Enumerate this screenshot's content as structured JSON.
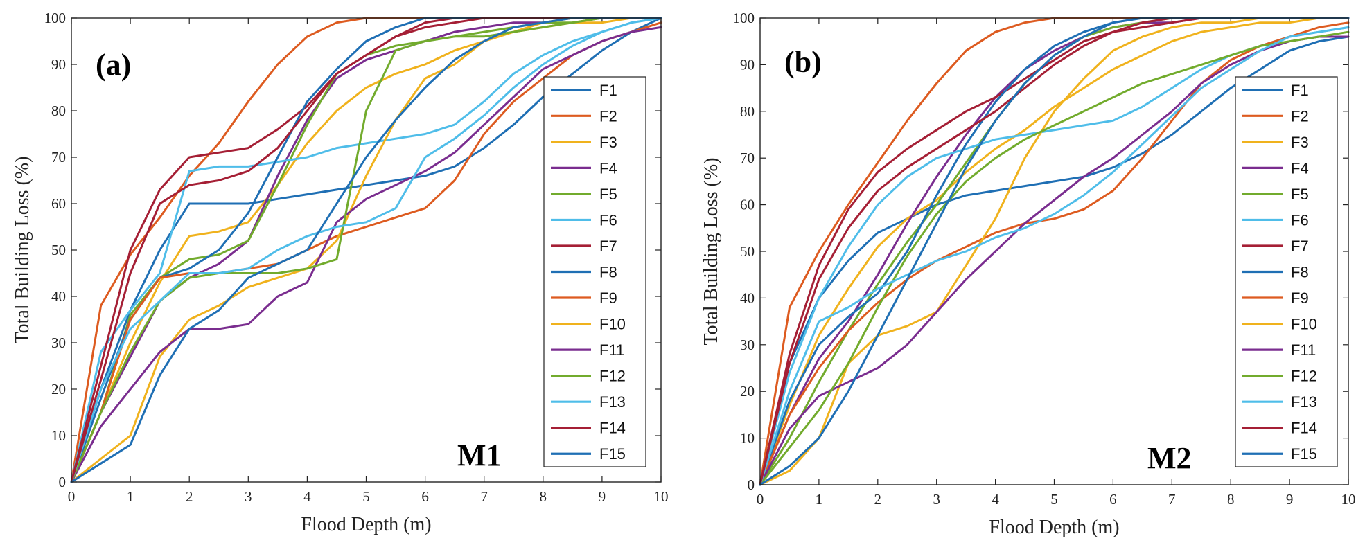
{
  "colors": [
    "#1f6fb4",
    "#dd5b20",
    "#f0b21d",
    "#7a2d8f",
    "#72ab2d",
    "#4fbde9",
    "#a51f35",
    "#1f6fb4",
    "#dd5b20",
    "#f0b21d",
    "#7a2d8f",
    "#72ab2d",
    "#4fbde9",
    "#a51f35",
    "#1f6fb4"
  ],
  "chart_data": [
    {
      "type": "line",
      "panel_label": "(a)",
      "model_label": "M1",
      "xlabel": "Flood Depth (m)",
      "ylabel": "Total Building Loss (%)",
      "xlim": [
        0,
        10
      ],
      "ylim": [
        0,
        100
      ],
      "xticks": [
        "0",
        "1",
        "2",
        "3",
        "4",
        "5",
        "6",
        "7",
        "8",
        "9",
        "10"
      ],
      "yticks": [
        "0",
        "10",
        "20",
        "30",
        "40",
        "50",
        "60",
        "70",
        "80",
        "90",
        "100"
      ],
      "legend": [
        "F1",
        "F2",
        "F3",
        "F4",
        "F5",
        "F6",
        "F7",
        "F8",
        "F9",
        "F10",
        "F11",
        "F12",
        "F13",
        "F14",
        "F15"
      ],
      "legend_position": "right",
      "x": [
        0,
        0.5,
        1,
        1.5,
        2,
        2.5,
        3,
        3.5,
        4,
        4.5,
        5,
        5.5,
        6,
        6.5,
        7,
        7.5,
        8,
        8.5,
        9,
        9.5,
        10
      ],
      "series": [
        {
          "name": "F1",
          "values": [
            0,
            20,
            37,
            50,
            60,
            60,
            60,
            61,
            62,
            63,
            64,
            65,
            66,
            68,
            72,
            77,
            83,
            88,
            93,
            97,
            100
          ]
        },
        {
          "name": "F2",
          "values": [
            0,
            38,
            49,
            57,
            66,
            73,
            82,
            90,
            96,
            99,
            100,
            100,
            100,
            100,
            100,
            100,
            100,
            100,
            100,
            100,
            100
          ]
        },
        {
          "name": "F3",
          "values": [
            0,
            15,
            30,
            43,
            53,
            54,
            56,
            64,
            73,
            80,
            85,
            88,
            90,
            93,
            95,
            97,
            98,
            99,
            99,
            100,
            100
          ]
        },
        {
          "name": "F4",
          "values": [
            0,
            15,
            27,
            39,
            44,
            47,
            52,
            66,
            78,
            87,
            91,
            93,
            95,
            97,
            98,
            99,
            99,
            100,
            100,
            100,
            100
          ]
        },
        {
          "name": "F5",
          "values": [
            0,
            15,
            36,
            44,
            48,
            49,
            52,
            64,
            77,
            88,
            92,
            94,
            95,
            96,
            97,
            98,
            99,
            99,
            100,
            100,
            100
          ]
        },
        {
          "name": "F6",
          "values": [
            0,
            28,
            37,
            45,
            67,
            68,
            68,
            69,
            70,
            72,
            73,
            74,
            75,
            77,
            82,
            88,
            92,
            95,
            97,
            99,
            100
          ]
        },
        {
          "name": "F7",
          "values": [
            0,
            25,
            50,
            63,
            70,
            71,
            72,
            76,
            81,
            88,
            92,
            96,
            99,
            100,
            100,
            100,
            100,
            100,
            100,
            100,
            100
          ]
        },
        {
          "name": "F8",
          "values": [
            0,
            18,
            35,
            44,
            46,
            50,
            58,
            70,
            82,
            89,
            95,
            98,
            100,
            100,
            100,
            100,
            100,
            100,
            100,
            100,
            100
          ]
        },
        {
          "name": "F9",
          "values": [
            0,
            15,
            35,
            44,
            45,
            45,
            46,
            47,
            50,
            53,
            55,
            57,
            59,
            65,
            75,
            82,
            87,
            92,
            95,
            97,
            99
          ]
        },
        {
          "name": "F10",
          "values": [
            0,
            5,
            10,
            27,
            35,
            38,
            42,
            44,
            46,
            52,
            66,
            78,
            87,
            90,
            95,
            97,
            99,
            100,
            100,
            100,
            100
          ]
        },
        {
          "name": "F11",
          "values": [
            0,
            12,
            20,
            28,
            33,
            33,
            34,
            40,
            43,
            56,
            61,
            64,
            67,
            71,
            77,
            83,
            89,
            92,
            95,
            97,
            98
          ]
        },
        {
          "name": "F12",
          "values": [
            0,
            15,
            28,
            39,
            44,
            45,
            45,
            45,
            46,
            48,
            80,
            93,
            95,
            96,
            96,
            97,
            98,
            99,
            100,
            100,
            100
          ]
        },
        {
          "name": "F13",
          "values": [
            0,
            20,
            33,
            39,
            45,
            45,
            46,
            50,
            53,
            55,
            56,
            59,
            70,
            74,
            79,
            85,
            90,
            94,
            97,
            99,
            100
          ]
        },
        {
          "name": "F14",
          "values": [
            0,
            22,
            45,
            60,
            64,
            65,
            67,
            72,
            80,
            88,
            92,
            96,
            98,
            99,
            100,
            100,
            100,
            100,
            100,
            100,
            100
          ]
        },
        {
          "name": "F15",
          "values": [
            0,
            4,
            8,
            23,
            33,
            37,
            44,
            47,
            50,
            60,
            70,
            78,
            85,
            91,
            95,
            98,
            99,
            100,
            100,
            100,
            100
          ]
        }
      ]
    },
    {
      "type": "line",
      "panel_label": "(b)",
      "model_label": "M2",
      "xlabel": "Flood Depth (m)",
      "ylabel": "Total Building Loss (%)",
      "xlim": [
        0,
        10
      ],
      "ylim": [
        0,
        100
      ],
      "xticks": [
        "0",
        "1",
        "2",
        "3",
        "4",
        "5",
        "6",
        "7",
        "8",
        "9",
        "10"
      ],
      "yticks": [
        "0",
        "10",
        "20",
        "30",
        "40",
        "50",
        "60",
        "70",
        "80",
        "90",
        "100"
      ],
      "legend": [
        "F1",
        "F2",
        "F3",
        "F4",
        "F5",
        "F6",
        "F7",
        "F8",
        "F9",
        "F10",
        "F11",
        "F12",
        "F13",
        "F14",
        "F15"
      ],
      "legend_position": "right",
      "x": [
        0,
        0.5,
        1,
        1.5,
        2,
        2.5,
        3,
        3.5,
        4,
        4.5,
        5,
        5.5,
        6,
        6.5,
        7,
        7.5,
        8,
        8.5,
        9,
        9.5,
        10
      ],
      "series": [
        {
          "name": "F1",
          "values": [
            0,
            26,
            40,
            48,
            54,
            57,
            60,
            62,
            63,
            64,
            65,
            66,
            68,
            71,
            75,
            80,
            85,
            89,
            93,
            95,
            96
          ]
        },
        {
          "name": "F2",
          "values": [
            0,
            38,
            50,
            60,
            69,
            78,
            86,
            93,
            97,
            99,
            100,
            100,
            100,
            100,
            100,
            100,
            100,
            100,
            100,
            100,
            100
          ]
        },
        {
          "name": "F3",
          "values": [
            0,
            17,
            32,
            42,
            51,
            57,
            61,
            67,
            72,
            76,
            81,
            85,
            89,
            92,
            95,
            97,
            98,
            99,
            99,
            100,
            100
          ]
        },
        {
          "name": "F4",
          "values": [
            0,
            15,
            27,
            35,
            45,
            56,
            66,
            75,
            83,
            89,
            93,
            96,
            98,
            99,
            99,
            100,
            100,
            100,
            100,
            100,
            100
          ]
        },
        {
          "name": "F5",
          "values": [
            0,
            10,
            22,
            33,
            43,
            52,
            60,
            69,
            78,
            86,
            92,
            96,
            98,
            99,
            100,
            100,
            100,
            100,
            100,
            100,
            100
          ]
        },
        {
          "name": "F6",
          "values": [
            0,
            24,
            40,
            51,
            60,
            66,
            70,
            72,
            74,
            75,
            76,
            77,
            78,
            81,
            85,
            89,
            92,
            94,
            96,
            97,
            98
          ]
        },
        {
          "name": "F7",
          "values": [
            0,
            28,
            47,
            59,
            67,
            72,
            76,
            80,
            83,
            87,
            91,
            95,
            97,
            98,
            99,
            100,
            100,
            100,
            100,
            100,
            100
          ]
        },
        {
          "name": "F8",
          "values": [
            0,
            18,
            30,
            36,
            41,
            50,
            62,
            73,
            82,
            89,
            94,
            97,
            99,
            100,
            100,
            100,
            100,
            100,
            100,
            100,
            100
          ]
        },
        {
          "name": "F9",
          "values": [
            0,
            15,
            25,
            33,
            39,
            44,
            48,
            51,
            54,
            56,
            57,
            59,
            63,
            70,
            78,
            86,
            91,
            94,
            96,
            98,
            99
          ]
        },
        {
          "name": "F10",
          "values": [
            0,
            3,
            10,
            26,
            32,
            34,
            37,
            47,
            57,
            70,
            80,
            87,
            93,
            96,
            98,
            99,
            99,
            100,
            100,
            100,
            100
          ]
        },
        {
          "name": "F11",
          "values": [
            0,
            12,
            19,
            22,
            25,
            30,
            37,
            44,
            50,
            56,
            61,
            66,
            70,
            75,
            80,
            86,
            90,
            93,
            95,
            96,
            96
          ]
        },
        {
          "name": "F12",
          "values": [
            0,
            8,
            16,
            26,
            38,
            49,
            58,
            65,
            70,
            74,
            77,
            80,
            83,
            86,
            88,
            90,
            92,
            94,
            95,
            96,
            97
          ]
        },
        {
          "name": "F13",
          "values": [
            0,
            20,
            35,
            38,
            42,
            45,
            48,
            50,
            53,
            55,
            58,
            62,
            67,
            73,
            79,
            85,
            89,
            93,
            96,
            97,
            98
          ]
        },
        {
          "name": "F14",
          "values": [
            0,
            26,
            44,
            55,
            63,
            68,
            72,
            76,
            80,
            85,
            90,
            94,
            97,
            99,
            100,
            100,
            100,
            100,
            100,
            100,
            100
          ]
        },
        {
          "name": "F15",
          "values": [
            0,
            4,
            10,
            20,
            32,
            44,
            56,
            68,
            78,
            86,
            92,
            96,
            99,
            100,
            100,
            100,
            100,
            100,
            100,
            100,
            100
          ]
        }
      ]
    }
  ]
}
